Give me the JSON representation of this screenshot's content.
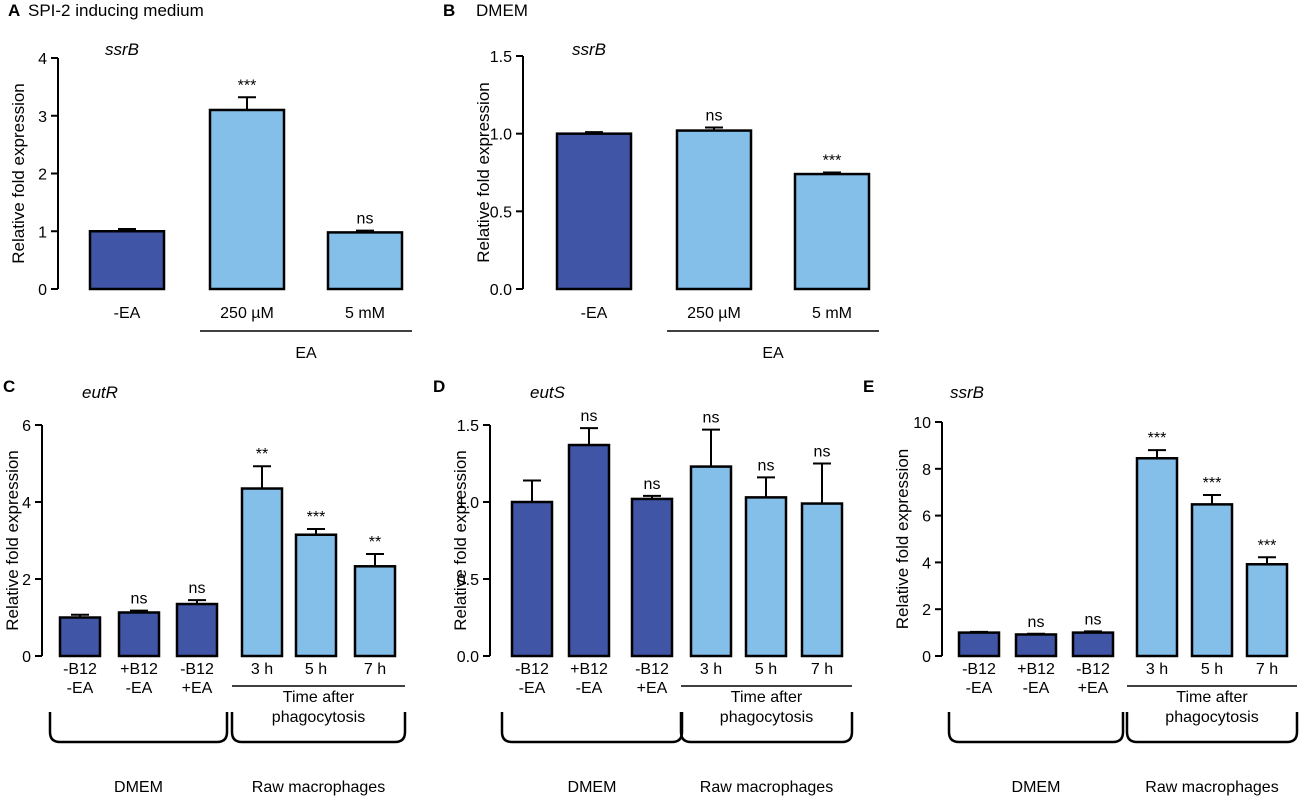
{
  "colors": {
    "dark_bar": "#4155a7",
    "light_bar": "#84bfea",
    "stroke": "#000000"
  },
  "chart_data": [
    {
      "panel": "A",
      "title": "SPI-2 inducing medium",
      "gene": "ssrB",
      "type": "bar",
      "ylabel": "Relative fold expression",
      "ylim": [
        0,
        4
      ],
      "yticks": [
        "0",
        "1",
        "2",
        "3",
        "4"
      ],
      "categories": [
        [
          "-EA"
        ],
        [
          "250 µM"
        ],
        [
          "5 mM"
        ]
      ],
      "values": [
        1.0,
        3.1,
        0.98
      ],
      "errors": [
        0.04,
        0.22,
        0.03
      ],
      "colors": [
        "dark",
        "light",
        "light"
      ],
      "significance": [
        "",
        "***",
        "ns"
      ],
      "groups": [
        {
          "label": "EA",
          "from": 1,
          "to": 2
        }
      ]
    },
    {
      "panel": "B",
      "title": "DMEM",
      "gene": "ssrB",
      "type": "bar",
      "ylabel": "Relative fold expression",
      "ylim": [
        0,
        1.5
      ],
      "yticks": [
        "0.0",
        "0.5",
        "1.0",
        "1.5"
      ],
      "categories": [
        [
          "-EA"
        ],
        [
          "250 µM"
        ],
        [
          "5 mM"
        ]
      ],
      "values": [
        1.0,
        1.02,
        0.74
      ],
      "errors": [
        0.01,
        0.02,
        0.01
      ],
      "colors": [
        "dark",
        "light",
        "light"
      ],
      "significance": [
        "",
        "ns",
        "***"
      ],
      "groups": [
        {
          "label": "EA",
          "from": 1,
          "to": 2
        }
      ]
    },
    {
      "panel": "C",
      "title": "",
      "gene": "eutR",
      "type": "bar",
      "ylabel": "Relative fold expression",
      "ylim": [
        0,
        6
      ],
      "yticks": [
        "0",
        "2",
        "4",
        "6"
      ],
      "categories": [
        [
          "-B12",
          "-EA"
        ],
        [
          "+B12",
          "-EA"
        ],
        [
          "-B12",
          "+EA"
        ],
        [
          "3 h"
        ],
        [
          "5 h"
        ],
        [
          "7 h"
        ]
      ],
      "values": [
        1.0,
        1.13,
        1.35,
        4.35,
        3.15,
        2.33
      ],
      "errors": [
        0.07,
        0.05,
        0.1,
        0.58,
        0.15,
        0.32
      ],
      "colors": [
        "dark",
        "dark",
        "dark",
        "light",
        "light",
        "light"
      ],
      "significance": [
        "",
        "ns",
        "ns",
        "**",
        "***",
        "**"
      ],
      "groups": [
        {
          "label": "Time after|phagocytosis",
          "from": 3,
          "to": 5
        }
      ],
      "brackets": [
        {
          "label": "DMEM",
          "from": 0,
          "to": 2
        },
        {
          "label": "Raw macrophages",
          "from": 3,
          "to": 5
        }
      ]
    },
    {
      "panel": "D",
      "title": "",
      "gene": "eutS",
      "type": "bar",
      "ylabel": "Relative fold expression",
      "ylim": [
        0,
        1.5
      ],
      "yticks": [
        "0.0",
        "0.5",
        "1.0",
        "1.5"
      ],
      "categories": [
        [
          "-B12",
          "-EA"
        ],
        [
          "+B12",
          "-EA"
        ],
        [
          "-B12",
          "+EA"
        ],
        [
          "3 h"
        ],
        [
          "5 h"
        ],
        [
          "7 h"
        ]
      ],
      "values": [
        1.0,
        1.37,
        1.02,
        1.23,
        1.03,
        0.99
      ],
      "errors": [
        0.14,
        0.11,
        0.02,
        0.24,
        0.13,
        0.26
      ],
      "colors": [
        "dark",
        "dark",
        "dark",
        "light",
        "light",
        "light"
      ],
      "significance": [
        "",
        "ns",
        "ns",
        "ns",
        "ns",
        "ns"
      ],
      "groups": [
        {
          "label": "Time after|phagocytosis",
          "from": 3,
          "to": 5
        }
      ],
      "brackets": [
        {
          "label": "DMEM",
          "from": 0,
          "to": 2
        },
        {
          "label": "Raw macrophages",
          "from": 3,
          "to": 5
        }
      ]
    },
    {
      "panel": "E",
      "title": "",
      "gene": "ssrB",
      "type": "bar",
      "ylabel": "Relative fold expression",
      "ylim": [
        0,
        10
      ],
      "yticks": [
        "0",
        "2",
        "4",
        "6",
        "8",
        "10"
      ],
      "categories": [
        [
          "-B12",
          "-EA"
        ],
        [
          "+B12",
          "-EA"
        ],
        [
          "-B12",
          "+EA"
        ],
        [
          "3 h"
        ],
        [
          "5 h"
        ],
        [
          "7 h"
        ]
      ],
      "values": [
        1.0,
        0.92,
        1.0,
        8.45,
        6.48,
        3.92
      ],
      "errors": [
        0.03,
        0.03,
        0.05,
        0.35,
        0.4,
        0.3
      ],
      "colors": [
        "dark",
        "dark",
        "dark",
        "light",
        "light",
        "light"
      ],
      "significance": [
        "",
        "ns",
        "ns",
        "***",
        "***",
        "***"
      ],
      "groups": [
        {
          "label": "Time after|phagocytosis",
          "from": 3,
          "to": 5
        }
      ],
      "brackets": [
        {
          "label": "DMEM",
          "from": 0,
          "to": 2
        },
        {
          "label": "Raw macrophages",
          "from": 3,
          "to": 5
        }
      ]
    }
  ]
}
